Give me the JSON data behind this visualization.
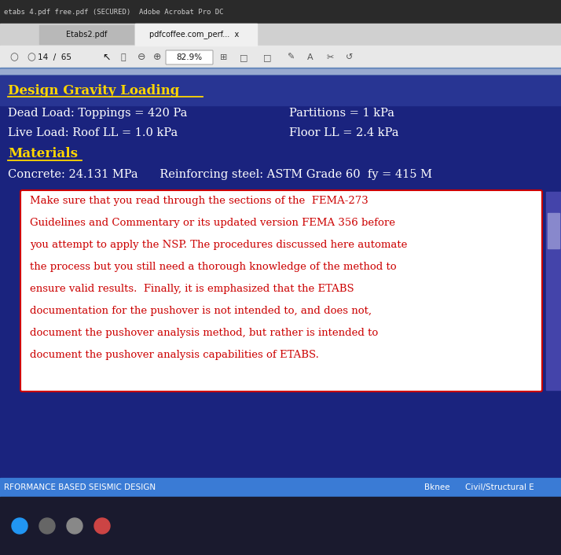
{
  "title_bar_text": "etabs 4.pdf free.pdf (SECURED)  Adobe Acrobat Pro DC",
  "tab1_text": "Etabs2.pdf",
  "tab2_text": "pdfcoffee.com_perf...  x",
  "page_indicator": "14  /  65",
  "zoom_indicator": "82.9%",
  "heading1": "Design Gravity Loading",
  "heading2": "Materials",
  "dead_load": "Dead Load: Toppings = 420 Pa",
  "partitions": "Partitions = 1 kPa",
  "live_load": "Live Load: Roof LL = 1.0 kPa",
  "floor_ll": "Floor LL = 2.4 kPa",
  "concrete_line": "Concrete: 24.131 MPa      Reinforcing steel: ASTM Grade 60  fy = 415 M",
  "warning_lines": [
    "Make sure that you read through the sections of the  FEMA-273",
    "Guidelines and Commentary or its updated version FEMA 356 before",
    "you attempt to apply the NSP. The procedures discussed here automate",
    "the process but you still need a thorough knowledge of the method to",
    "ensure valid results.  Finally, it is emphasized that the ETABS",
    "documentation for the pushover is not intended to, and does not,",
    "document the pushover analysis method, but rather is intended to",
    "document the pushover analysis capabilities of ETABS."
  ],
  "footer_left": "RFORMANCE BASED SEISMIC DESIGN",
  "footer_mid": "Bknee",
  "footer_right": "Civil/Structural E",
  "bg_titlebar": "#2a2a2a",
  "bg_tabbar": "#d0d0d0",
  "bg_tab_inactive": "#b8b8b8",
  "bg_tab_active": "#f0f0f0",
  "bg_toolbar": "#e8e8e8",
  "bg_gradient1": "#6688bb",
  "bg_gradient2": "#99aad0",
  "bg_content": "#1a237e",
  "bg_content_top": "#283593",
  "bg_warning": "#ffffff",
  "bg_footer": "#3a7bd5",
  "bg_taskbar": "#1a1a2e",
  "text_white": "#ffffff",
  "text_yellow": "#ffd700",
  "text_dark": "#111111",
  "text_gray": "#555555",
  "text_light_gray": "#cccccc",
  "text_red": "#cc0000",
  "warning_border": "#cc0000",
  "taskbar_icon_colors": [
    "#2196F3",
    "#666666",
    "#888888",
    "#cc4444"
  ]
}
